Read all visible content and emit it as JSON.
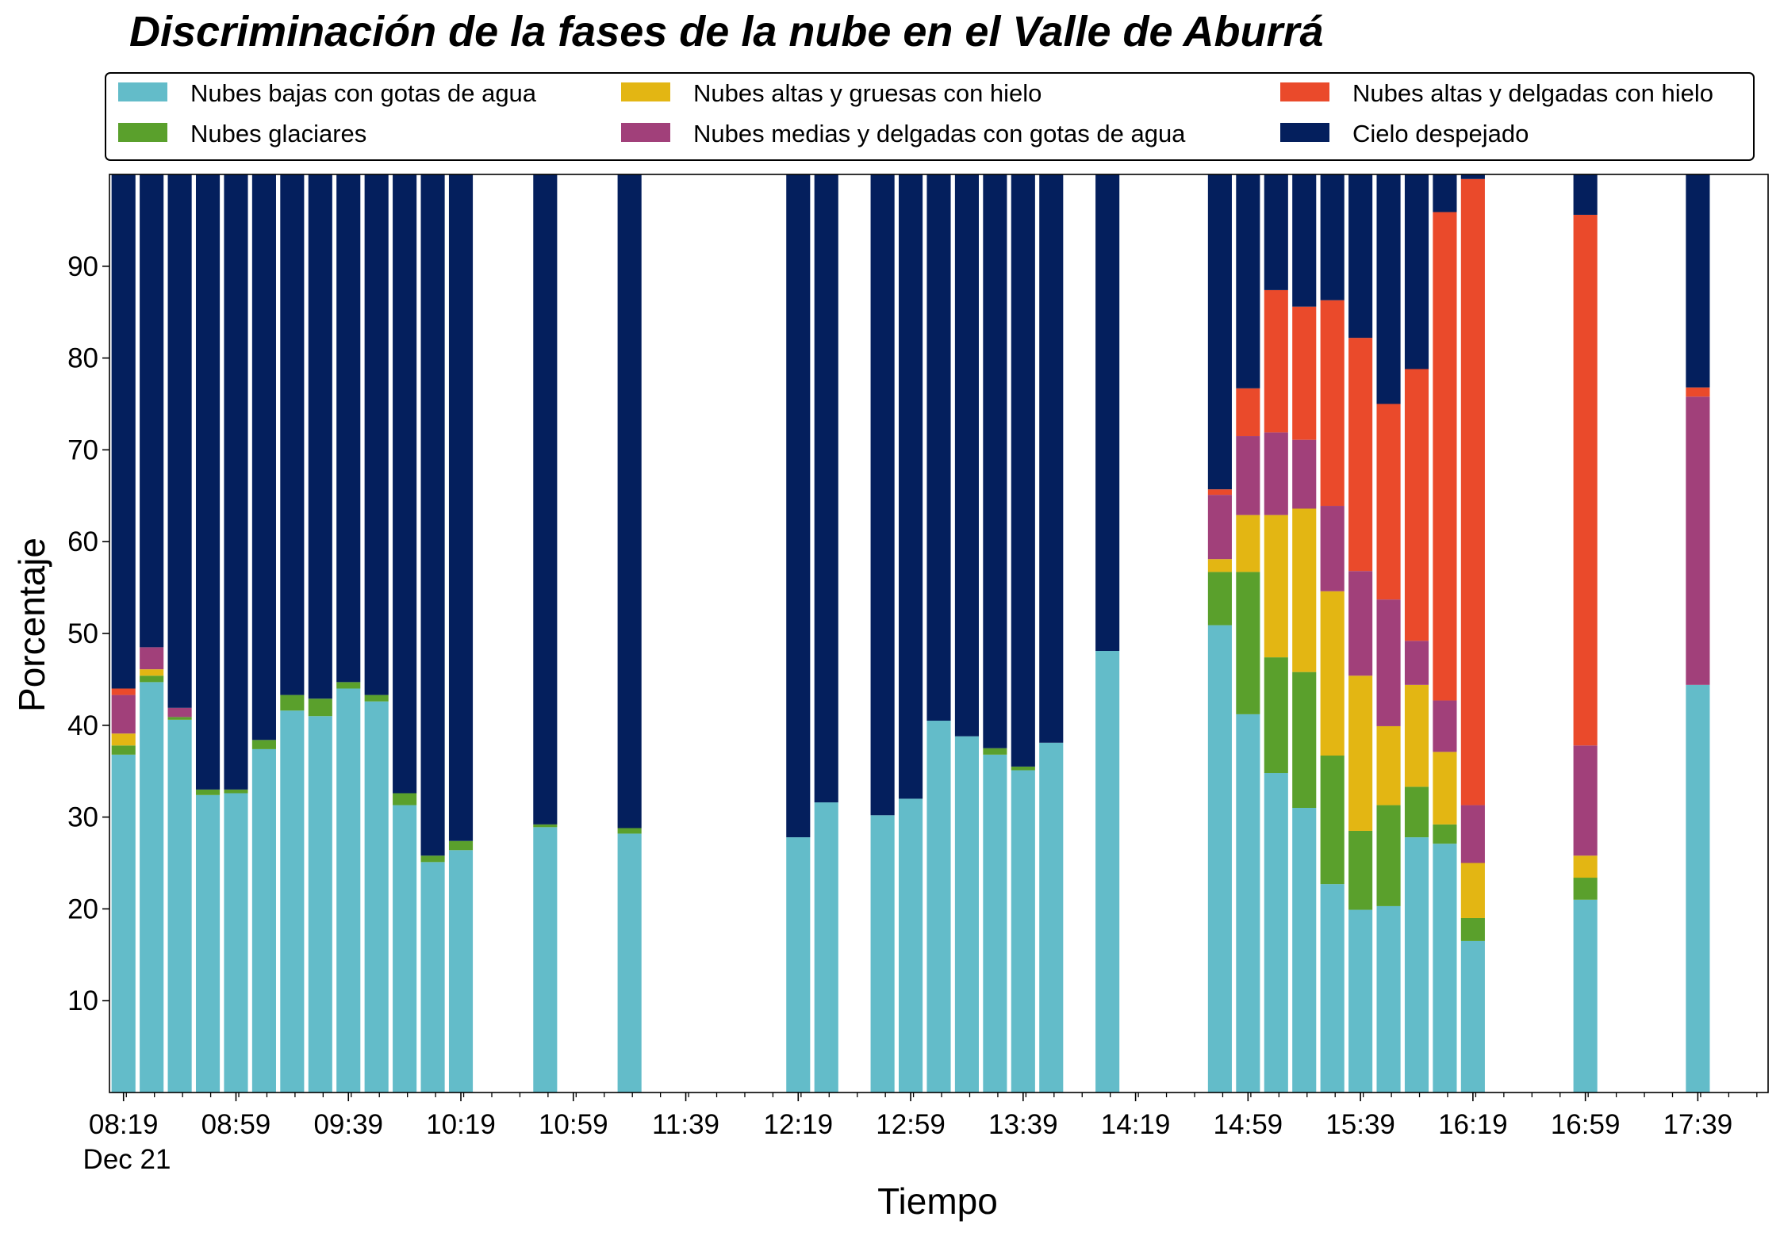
{
  "chart_data": {
    "type": "bar",
    "stacked": true,
    "title": "Discriminación de la fases de la nube en el Valle de Aburrá",
    "xlabel": "Tiempo",
    "ylabel": "Porcentaje",
    "ylim": [
      0,
      100
    ],
    "yticks": [
      10,
      20,
      30,
      40,
      50,
      60,
      70,
      80,
      90
    ],
    "xlim": [
      "08:14",
      "18:04"
    ],
    "xticks": [
      "08:19",
      "08:59",
      "09:39",
      "10:19",
      "10:59",
      "11:39",
      "12:19",
      "12:59",
      "13:39",
      "14:19",
      "14:59",
      "15:39",
      "16:19",
      "16:59",
      "17:39"
    ],
    "x_date_label": "Dec 21",
    "minor_tick_step_minutes": 10,
    "bar_width_minutes": 8.5,
    "grid": false,
    "legend_position": "top",
    "legend_columns": 3,
    "x": [
      "08:19",
      "08:29",
      "08:39",
      "08:49",
      "08:59",
      "09:09",
      "09:19",
      "09:29",
      "09:39",
      "09:49",
      "09:59",
      "10:09",
      "10:19",
      "10:49",
      "11:19",
      "12:19",
      "12:29",
      "12:49",
      "12:59",
      "13:09",
      "13:19",
      "13:29",
      "13:39",
      "13:49",
      "14:09",
      "14:49",
      "14:59",
      "15:09",
      "15:19",
      "15:29",
      "15:39",
      "15:49",
      "15:59",
      "16:09",
      "16:19",
      "16:59",
      "17:39"
    ],
    "series": [
      {
        "name": "Nubes bajas con gotas de agua",
        "color": "#63bcc9",
        "values": [
          36.8,
          44.7,
          40.6,
          32.4,
          32.6,
          37.4,
          41.6,
          41.0,
          44.0,
          42.6,
          31.3,
          25.1,
          26.4,
          28.9,
          28.2,
          27.8,
          31.6,
          30.2,
          32.0,
          40.5,
          38.8,
          36.8,
          35.1,
          38.1,
          48.1,
          50.9,
          41.2,
          34.8,
          31.0,
          22.7,
          19.9,
          20.3,
          27.8,
          27.1,
          16.5,
          21.0,
          44.4
        ]
      },
      {
        "name": "Nubes glaciares",
        "color": "#5aa02c",
        "values": [
          1.0,
          0.7,
          0.3,
          0.6,
          0.4,
          1.0,
          1.7,
          1.9,
          0.7,
          0.7,
          1.3,
          0.7,
          1.0,
          0.3,
          0.6,
          0,
          0,
          0,
          0,
          0,
          0,
          0.7,
          0.4,
          0,
          0,
          5.8,
          15.5,
          12.6,
          14.8,
          14.0,
          8.6,
          11.0,
          5.5,
          2.1,
          2.5,
          2.4,
          0
        ]
      },
      {
        "name": "Nubes altas y gruesas con hielo",
        "color": "#e3b613",
        "values": [
          1.3,
          0.7,
          0,
          0,
          0,
          0,
          0,
          0,
          0,
          0,
          0,
          0,
          0,
          0,
          0,
          0,
          0,
          0,
          0,
          0,
          0,
          0,
          0,
          0,
          0,
          1.4,
          6.2,
          15.5,
          17.8,
          17.9,
          16.9,
          8.6,
          11.1,
          7.9,
          6.0,
          2.4,
          0
        ]
      },
      {
        "name": "Nubes medias y delgadas con gotas de agua",
        "color": "#a1407a",
        "values": [
          4.2,
          2.4,
          1.0,
          0,
          0,
          0,
          0,
          0,
          0,
          0,
          0,
          0,
          0,
          0,
          0,
          0,
          0,
          0,
          0,
          0,
          0,
          0,
          0,
          0,
          0,
          7.0,
          8.6,
          9.0,
          7.5,
          9.3,
          11.4,
          13.8,
          4.8,
          5.6,
          6.3,
          12.0,
          31.4
        ]
      },
      {
        "name": "Nubes altas y delgadas con hielo",
        "color": "#ea4a2b",
        "values": [
          0.7,
          0,
          0,
          0,
          0,
          0,
          0,
          0,
          0,
          0,
          0,
          0,
          0,
          0,
          0,
          0,
          0,
          0,
          0,
          0,
          0,
          0,
          0,
          0,
          0,
          0.6,
          5.2,
          15.5,
          14.5,
          22.4,
          25.4,
          21.3,
          29.6,
          53.2,
          68.2,
          57.8,
          1.0
        ]
      },
      {
        "name": "Cielo despejado",
        "color": "#041f5d",
        "values": [
          56.0,
          51.5,
          58.1,
          67.0,
          67.0,
          61.6,
          56.7,
          57.1,
          55.3,
          56.7,
          67.4,
          74.2,
          72.6,
          70.8,
          71.2,
          72.2,
          68.4,
          69.8,
          68.0,
          59.5,
          61.2,
          62.5,
          64.5,
          61.9,
          51.9,
          34.3,
          23.3,
          12.6,
          14.4,
          13.7,
          17.8,
          25.0,
          21.2,
          4.1,
          0.5,
          4.4,
          23.2
        ]
      }
    ]
  }
}
